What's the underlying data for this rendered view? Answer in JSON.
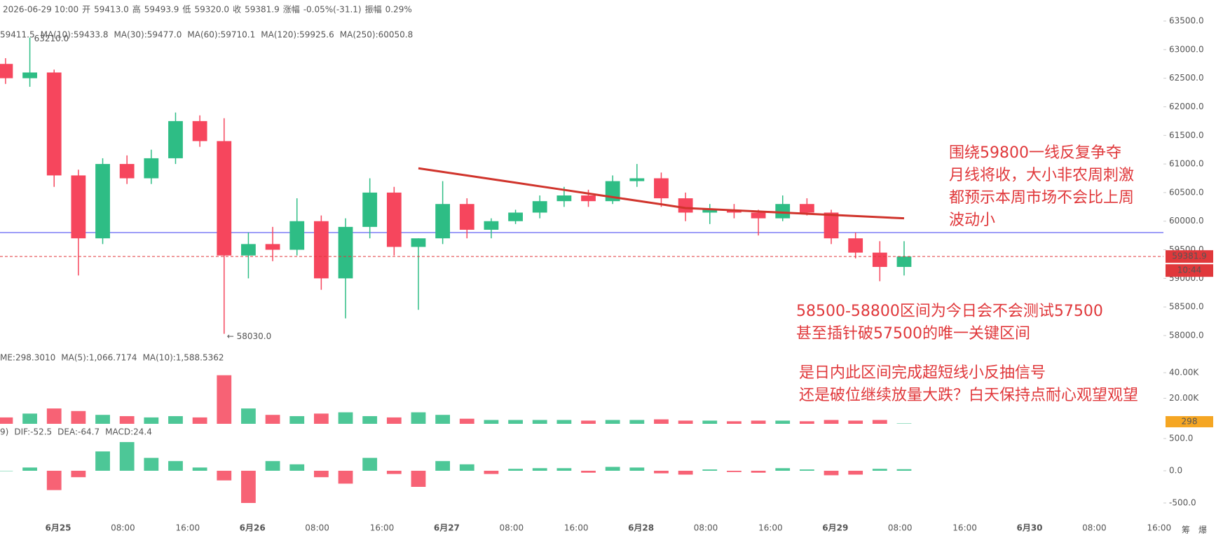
{
  "chart_data": {
    "type": "candlestick",
    "info": [
      {
        "text": "2026-06-29 10:00",
        "color": "#555555"
      },
      {
        "text": "开",
        "color": "#555555"
      },
      {
        "text": "59413.0",
        "color": "#e0383b"
      },
      {
        "text": "高",
        "color": "#555555"
      },
      {
        "text": "59493.9",
        "color": "#e0383b"
      },
      {
        "text": "低",
        "color": "#555555"
      },
      {
        "text": "59320.0",
        "color": "#e0383b"
      },
      {
        "text": "收",
        "color": "#555555"
      },
      {
        "text": "59381.9",
        "color": "#e0383b"
      },
      {
        "text": "涨幅",
        "color": "#555555"
      },
      {
        "text": "-0.05%(-31.1)",
        "color": "#e0383b"
      },
      {
        "text": "振幅",
        "color": "#555555"
      },
      {
        "text": "0.29%",
        "color": "#e0383b"
      }
    ],
    "ma_legend": [
      {
        "text": "59411.5",
        "color": "#1f4e9c"
      },
      {
        "text": "MA(10):59433.8",
        "color": "#7a1f3d"
      },
      {
        "text": "MA(30):59477.0",
        "color": "#e77fb0"
      },
      {
        "text": "MA(60):59710.1",
        "color": "#35c2c0"
      },
      {
        "text": "MA(120):59925.6",
        "color": "#b5651d"
      },
      {
        "text": "MA(250):60050.8",
        "color": "#8b2b2b"
      }
    ],
    "categories": [
      null,
      null,
      null,
      null,
      null,
      null,
      null,
      null,
      null,
      null,
      null,
      null,
      null,
      null,
      null,
      null,
      null,
      null,
      null,
      null,
      null,
      null,
      null,
      null,
      null,
      null,
      null,
      null,
      null,
      null,
      null,
      null,
      null,
      null,
      null,
      null,
      null,
      null
    ],
    "open": [
      62750,
      62500,
      62600,
      60800,
      59700,
      61000,
      60750,
      61100,
      61750,
      61400,
      59400,
      59600,
      59500,
      60000,
      59000,
      59900,
      60500,
      59550,
      59700,
      60300,
      59850,
      60000,
      60150,
      60350,
      60450,
      60350,
      60700,
      60750,
      60400,
      60150,
      60200,
      60150,
      60050,
      60300,
      60150,
      59700,
      59450,
      59200
    ],
    "high": [
      62850,
      63210,
      62650,
      60900,
      61100,
      61150,
      61250,
      61900,
      61850,
      61800,
      59800,
      59900,
      60400,
      60100,
      60050,
      60750,
      60600,
      59700,
      60700,
      60400,
      60050,
      60200,
      60450,
      60600,
      60550,
      60800,
      61000,
      60850,
      60500,
      60300,
      60300,
      60200,
      60450,
      60400,
      60200,
      59800,
      59650,
      59650
    ],
    "low": [
      62400,
      62350,
      60600,
      59050,
      59600,
      60650,
      60650,
      61000,
      61300,
      58030,
      59000,
      59300,
      59400,
      58800,
      58300,
      59700,
      59400,
      58450,
      59600,
      59700,
      59700,
      59950,
      60050,
      60250,
      60250,
      60300,
      60600,
      60250,
      60000,
      59950,
      60050,
      59750,
      60000,
      60100,
      59600,
      59350,
      58950,
      59050
    ],
    "close": [
      62500,
      62600,
      60800,
      59700,
      61000,
      60750,
      61100,
      61750,
      61400,
      59400,
      59600,
      59500,
      60000,
      59000,
      59900,
      60500,
      59550,
      59700,
      60300,
      59850,
      60000,
      60150,
      60350,
      60450,
      60350,
      60700,
      60750,
      60400,
      60150,
      60200,
      60150,
      60050,
      60300,
      60150,
      59700,
      59450,
      59200,
      59381.9
    ],
    "up_color": "#2ebd85",
    "down_color": "#f6465d",
    "ylim": [
      58000,
      63500
    ],
    "yticks": [
      {
        "value": 58000,
        "label": "58000.0"
      },
      {
        "value": 58500,
        "label": "58500.0"
      },
      {
        "value": 59000,
        "label": "59000.0"
      },
      {
        "value": 59500,
        "label": "59500.0"
      },
      {
        "value": 60000,
        "label": "60000.0"
      },
      {
        "value": 60500,
        "label": "60500.0"
      },
      {
        "value": 61000,
        "label": "61000.0"
      },
      {
        "value": 61500,
        "label": "61500.0"
      },
      {
        "value": 62000,
        "label": "62000.0"
      },
      {
        "value": 62500,
        "label": "62500.0"
      },
      {
        "value": 63000,
        "label": "63000.0"
      },
      {
        "value": 63500,
        "label": "63500.0"
      }
    ],
    "xticks": [
      "6月25",
      "08:00",
      "16:00",
      "6月26",
      "08:00",
      "16:00",
      "6月27",
      "08:00",
      "16:00",
      "6月28",
      "08:00",
      "16:00",
      "6月29",
      "08:00",
      "16:00",
      "6月30",
      "08:00",
      "16:00"
    ],
    "high_marker": {
      "value": 63210,
      "label": "63210.0"
    },
    "low_marker": {
      "value": 58030,
      "label": "← 58030.0"
    },
    "levels": [
      {
        "value": 59800,
        "color": "#3b3bf0"
      }
    ],
    "last_price": {
      "value": 59381.9,
      "time": "10:44",
      "color": "#e0383b"
    },
    "trend": {
      "color": "#d0342c",
      "values": [
        null,
        null,
        null,
        null,
        null,
        null,
        null,
        null,
        null,
        null,
        null,
        null,
        null,
        null,
        null,
        null,
        null,
        60925,
        60862,
        60799,
        60736,
        60673,
        60610,
        60547,
        60484,
        60421,
        60358,
        60295,
        60230,
        60210,
        60190,
        60170,
        60150,
        60130,
        60110,
        60090,
        60070,
        60050
      ]
    },
    "volume": {
      "values": [
        5000,
        8000,
        12000,
        10000,
        7000,
        6000,
        5000,
        6000,
        5000,
        38000,
        12000,
        7000,
        6000,
        8000,
        9000,
        6000,
        5000,
        9000,
        7000,
        4000,
        3000,
        3000,
        3000,
        3000,
        2500,
        3000,
        3000,
        3500,
        2500,
        2500,
        2000,
        2500,
        2500,
        2000,
        3000,
        2500,
        3000,
        298
      ],
      "last_label": "298",
      "ylim": [
        0,
        40000
      ],
      "yticks": [
        {
          "value": 20000,
          "label": "20.00K"
        },
        {
          "value": 40000,
          "label": "40.00K"
        }
      ],
      "legend": [
        {
          "text": "ME:298.3010",
          "color": "#555555"
        },
        {
          "text": "MA(5):1,066.7174",
          "color": "#2ebd85"
        },
        {
          "text": "MA(10):1,588.5362",
          "color": "#e8a317"
        }
      ]
    },
    "macd": {
      "values": [
        0,
        50,
        -300,
        -100,
        300,
        445,
        200,
        150,
        50,
        -150,
        -500,
        150,
        100,
        -100,
        -200,
        200,
        -50,
        -250,
        150,
        100,
        -50,
        30,
        40,
        40,
        -30,
        60,
        50,
        -40,
        -60,
        20,
        -20,
        -30,
        40,
        20,
        -70,
        -60,
        30,
        24.4
      ],
      "ylim": [
        -500,
        500
      ],
      "yticks": [
        {
          "value": 500,
          "label": "500.0"
        },
        {
          "value": 0,
          "label": "0.0"
        },
        {
          "value": -500,
          "label": "-500.0"
        }
      ],
      "legend": [
        {
          "text": "9)",
          "color": "#555555"
        },
        {
          "text": "DIF:-52.5",
          "color": "#2ebd85"
        },
        {
          "text": "DEA:-64.7",
          "color": "#e8a317"
        },
        {
          "text": "MACD:24.4",
          "color": "#2ebd85"
        }
      ]
    },
    "annotations": [
      [
        "围绕59800一线反复争夺",
        "月线将收，大小非农周刺激",
        "都预示本周市场不会比上周",
        "波动小"
      ],
      [
        "58500-58800区间为今日会不会测试57500",
        "甚至插针破57500的唯一关键区间"
      ],
      [
        "是日内此区间完成超短线小反抽信号",
        "还是破位继续放量大跌？白天保持点耐心观望观望"
      ]
    ],
    "corner": [
      "筹",
      "爆"
    ]
  }
}
